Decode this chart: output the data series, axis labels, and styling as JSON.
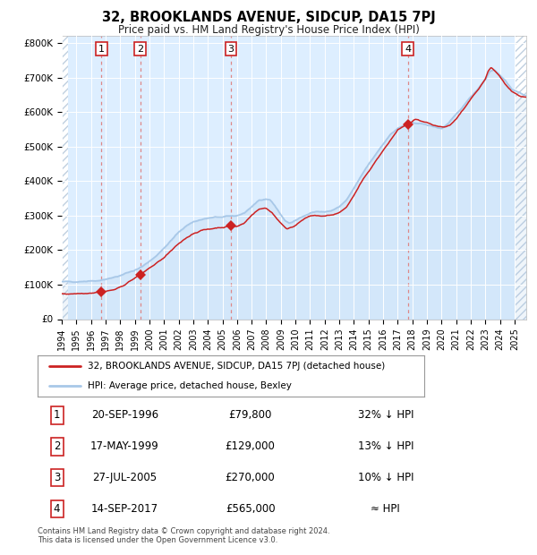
{
  "title": "32, BROOKLANDS AVENUE, SIDCUP, DA15 7PJ",
  "subtitle": "Price paid vs. HM Land Registry's House Price Index (HPI)",
  "footer": "Contains HM Land Registry data © Crown copyright and database right 2024.\nThis data is licensed under the Open Government Licence v3.0.",
  "legend_line1": "32, BROOKLANDS AVENUE, SIDCUP, DA15 7PJ (detached house)",
  "legend_line2": "HPI: Average price, detached house, Bexley",
  "transactions": [
    {
      "num": 1,
      "date": "20-SEP-1996",
      "price": 79800,
      "year": 1996.72,
      "rel": "32% ↓ HPI"
    },
    {
      "num": 2,
      "date": "17-MAY-1999",
      "price": 129000,
      "year": 1999.37,
      "rel": "13% ↓ HPI"
    },
    {
      "num": 3,
      "date": "27-JUL-2005",
      "price": 270000,
      "year": 2005.57,
      "rel": "10% ↓ HPI"
    },
    {
      "num": 4,
      "date": "14-SEP-2017",
      "price": 565000,
      "year": 2017.7,
      "rel": "≈ HPI"
    }
  ],
  "hpi_color": "#a8c8e8",
  "price_color": "#cc2222",
  "marker_color": "#cc2222",
  "vline_color": "#dd8888",
  "plot_bg": "#ddeeff",
  "ylim": [
    0,
    820000
  ],
  "xlim_start": 1994.0,
  "xlim_end": 2025.8
}
